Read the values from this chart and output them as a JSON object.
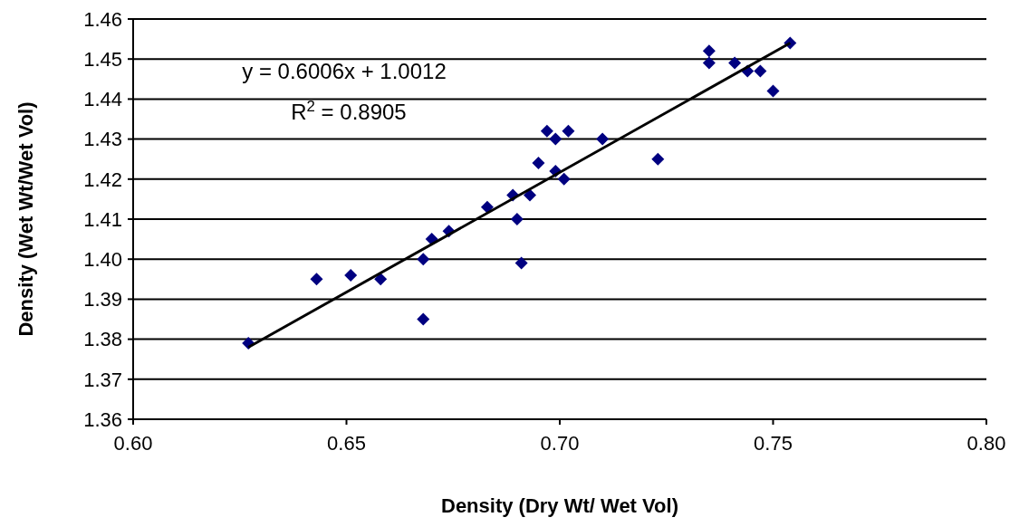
{
  "chart_data": {
    "type": "scatter",
    "xlabel": "Density (Dry Wt/ Wet Vol)",
    "ylabel": "Density (Wet Wt/Wet Vol)",
    "xlim": [
      0.6,
      0.8
    ],
    "xticks": [
      {
        "value": 0.6,
        "label": "0.60"
      },
      {
        "value": 0.65,
        "label": "0.65"
      },
      {
        "value": 0.7,
        "label": "0.70"
      },
      {
        "value": 0.75,
        "label": "0.75"
      },
      {
        "value": 0.8,
        "label": "0.80"
      }
    ],
    "ylim": [
      1.36,
      1.46
    ],
    "yticks": [
      {
        "value": 1.36,
        "label": "1.36"
      },
      {
        "value": 1.37,
        "label": "1.37"
      },
      {
        "value": 1.38,
        "label": "1.38"
      },
      {
        "value": 1.39,
        "label": "1.39"
      },
      {
        "value": 1.4,
        "label": "1.40"
      },
      {
        "value": 1.41,
        "label": "1.41"
      },
      {
        "value": 1.42,
        "label": "1.42"
      },
      {
        "value": 1.43,
        "label": "1.43"
      },
      {
        "value": 1.44,
        "label": "1.44"
      },
      {
        "value": 1.45,
        "label": "1.45"
      },
      {
        "value": 1.46,
        "label": "1.46"
      }
    ],
    "grid": "y",
    "marker": "diamond",
    "annotations": [
      "y = 0.6006x + 1.0012",
      "R$^{2}$ = 0.8905"
    ],
    "series": [
      {
        "color": "#000080",
        "x": [
          0.627,
          0.643,
          0.651,
          0.658,
          0.668,
          0.668,
          0.67,
          0.674,
          0.683,
          0.689,
          0.69,
          0.691,
          0.693,
          0.695,
          0.697,
          0.699,
          0.699,
          0.701,
          0.702,
          0.71,
          0.723,
          0.735,
          0.735,
          0.741,
          0.744,
          0.747,
          0.75,
          0.754
        ],
        "values": [
          1.379,
          1.395,
          1.396,
          1.395,
          1.385,
          1.4,
          1.405,
          1.407,
          1.413,
          1.416,
          1.41,
          1.399,
          1.416,
          1.424,
          1.432,
          1.43,
          1.422,
          1.42,
          1.432,
          1.43,
          1.425,
          1.449,
          1.452,
          1.449,
          1.447,
          1.447,
          1.442,
          1.454
        ]
      },
      {
        "type": "line",
        "color": "#000000",
        "marker": "none",
        "line_style": "solid",
        "x": [
          0.627,
          0.754
        ],
        "values": [
          1.378,
          1.454
        ]
      }
    ]
  }
}
